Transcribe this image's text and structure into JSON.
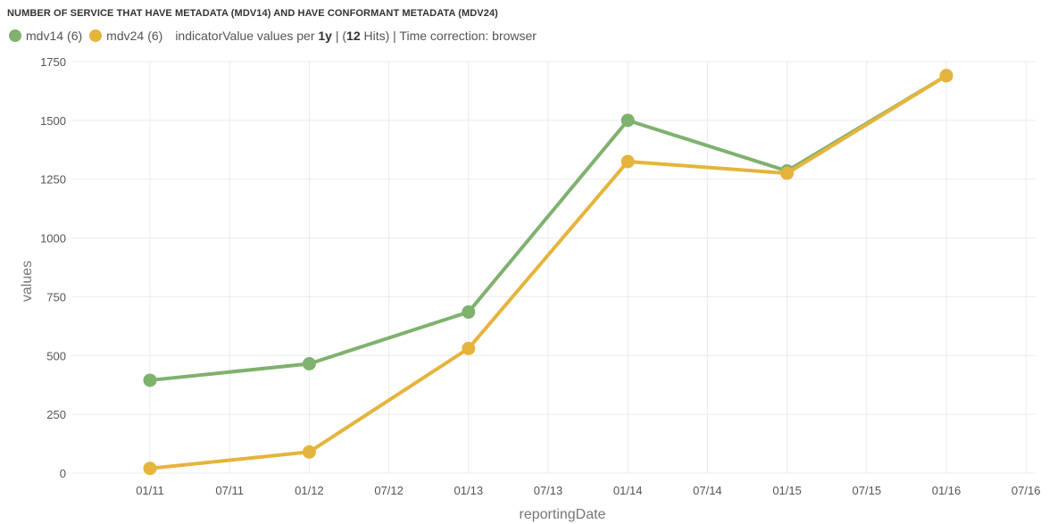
{
  "title": "NUMBER OF SERVICE THAT HAVE METADATA (MDV14) AND HAVE CONFORMANT METADATA (MDV24)",
  "legend": {
    "items": [
      {
        "name": "mdv14",
        "count": "(6)",
        "color": "#7fb16f"
      },
      {
        "name": "mdv24",
        "count": "(6)",
        "color": "#e5b43c"
      }
    ],
    "info": {
      "prefix": "indicatorValue values per ",
      "interval": "1y",
      "sep": " | (",
      "hits": "12",
      "suffix": " Hits) | Time correction: browser"
    }
  },
  "chart_data": {
    "type": "line",
    "title": "NUMBER OF SERVICE THAT HAVE METADATA (MDV14) AND HAVE CONFORMANT METADATA (MDV24)",
    "xlabel": "reportingDate",
    "ylabel": "values",
    "x_ticks": [
      "01/11",
      "07/11",
      "01/12",
      "07/12",
      "01/13",
      "07/13",
      "01/14",
      "07/14",
      "01/15",
      "07/15",
      "01/16",
      "07/16"
    ],
    "y_ticks": [
      0,
      250,
      500,
      750,
      1000,
      1250,
      1500,
      1750
    ],
    "ylim": [
      0,
      1750
    ],
    "x": [
      "01/11",
      "01/12",
      "01/13",
      "01/14",
      "01/15",
      "01/16"
    ],
    "series": [
      {
        "name": "mdv14",
        "color": "#7fb16f",
        "values": [
          395,
          465,
          685,
          1500,
          1285,
          1690
        ]
      },
      {
        "name": "mdv24",
        "color": "#e5b43c",
        "values": [
          20,
          90,
          530,
          1325,
          1275,
          1690
        ]
      }
    ],
    "grid": true,
    "legend": "top-left"
  }
}
